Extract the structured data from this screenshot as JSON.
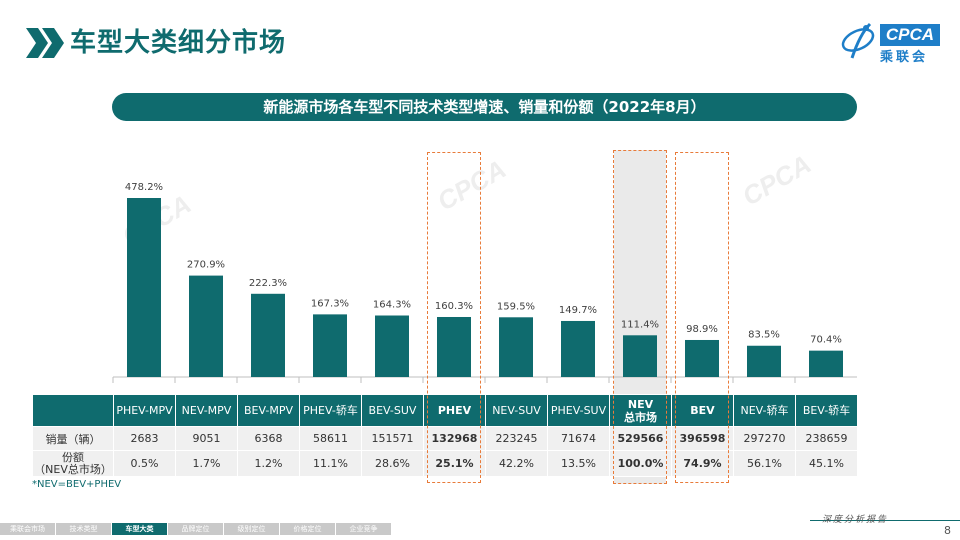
{
  "header": {
    "title": "车型大类细分市场",
    "logo_text": "CPCA",
    "logo_sub": "乘联会"
  },
  "subtitle": "新能源市场各车型不同技术类型增速、销量和份额（2022年8月）",
  "colors": {
    "primary": "#0f6b6e",
    "highlight": "#e87b3a",
    "logo": "#1e7ec8"
  },
  "chart_data": {
    "type": "bar",
    "categories": [
      "PHEV-MPV",
      "NEV-MPV",
      "BEV-MPV",
      "PHEV-轿车",
      "BEV-SUV",
      "PHEV",
      "NEV-SUV",
      "PHEV-SUV",
      "NEV总市场",
      "BEV",
      "NEV-轿车",
      "BEV-轿车"
    ],
    "values": [
      478.2,
      270.9,
      222.3,
      167.3,
      164.3,
      160.3,
      159.5,
      149.7,
      111.4,
      98.9,
      83.5,
      70.4
    ],
    "labels": [
      "478.2%",
      "270.9%",
      "222.3%",
      "167.3%",
      "164.3%",
      "160.3%",
      "159.5%",
      "149.7%",
      "111.4%",
      "98.9%",
      "83.5%",
      "70.4%"
    ],
    "unit": "%",
    "ylim": [
      0,
      480
    ],
    "title": "新能源市场各车型不同技术类型增速、销量和份额（2022年8月）"
  },
  "table": {
    "headers": [
      "PHEV-MPV",
      "NEV-MPV",
      "BEV-MPV",
      "PHEV-轿车",
      "BEV-SUV",
      "PHEV",
      "NEV-SUV",
      "PHEV-SUV",
      "NEV\n总市场",
      "BEV",
      "NEV-轿车",
      "BEV-轿车"
    ],
    "rows": [
      {
        "label": "销量（辆）",
        "values": [
          "2683",
          "9051",
          "6368",
          "58611",
          "151571",
          "132968",
          "223245",
          "71674",
          "529566",
          "396598",
          "297270",
          "238659"
        ]
      },
      {
        "label": "份额\n（NEV总市场）",
        "values": [
          "0.5%",
          "1.7%",
          "1.2%",
          "11.1%",
          "28.6%",
          "25.1%",
          "42.2%",
          "13.5%",
          "100.0%",
          "74.9%",
          "56.1%",
          "45.1%"
        ]
      }
    ]
  },
  "note": "*NEV=BEV+PHEV",
  "footer": {
    "nav": [
      "乘联会市场",
      "技术类型",
      "车型大类",
      "品牌定位",
      "级别定位",
      "价格定位",
      "企业竞争"
    ],
    "active_index": 2,
    "tagline": "深度分析报告",
    "page": "8"
  }
}
